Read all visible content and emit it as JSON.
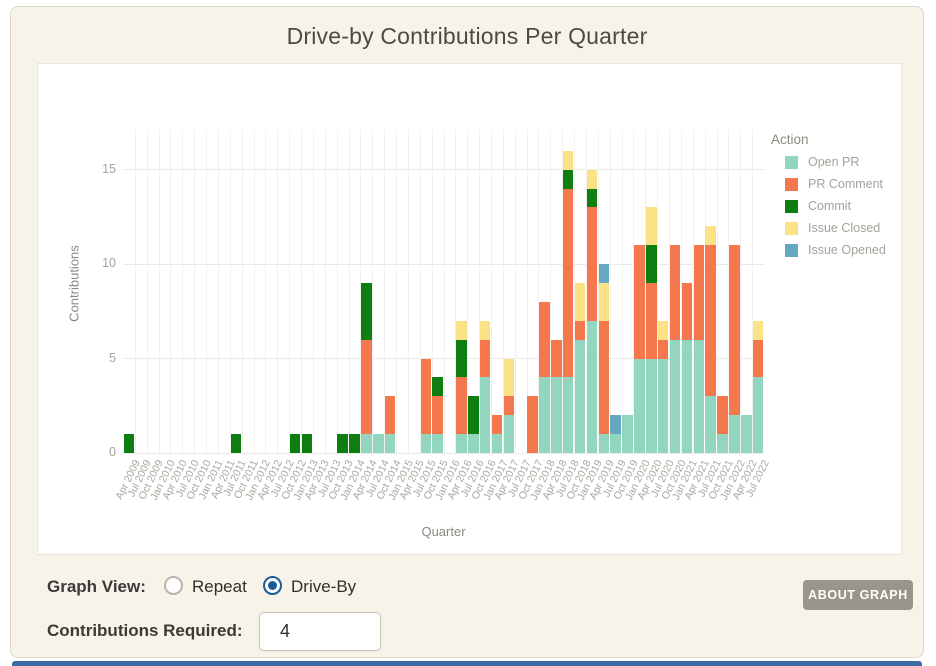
{
  "page_title": "Drive-by Contributions Per Quarter",
  "controls": {
    "graph_view_label": "Graph View:",
    "repeat_label": "Repeat",
    "driveby_label": "Drive-By",
    "selected_view": "Drive-By",
    "contributions_label": "Contributions Required:",
    "contributions_value": "4",
    "about_button_label": "ABOUT GRAPH"
  },
  "colors": {
    "accent_blue": "#1b5b99",
    "button_gray": "#9a958b",
    "card_bg": "#f8f3e9",
    "strip_blue": "#3c6ca4"
  },
  "chart_data": {
    "type": "bar",
    "stacked": true,
    "title": "Drive-by Contributions Per Quarter",
    "xlabel": "Quarter",
    "ylabel": "Contributions",
    "ylim": [
      0,
      17.1
    ],
    "yticks": [
      0,
      5,
      10,
      15
    ],
    "grid": true,
    "legend_title": "Action",
    "legend_position": "right",
    "categories": [
      "Apr 2009",
      "Jul 2009",
      "Oct 2009",
      "Jan 2010",
      "Apr 2010",
      "Jul 2010",
      "Oct 2010",
      "Jan 2011",
      "Apr 2011",
      "Jul 2011",
      "Oct 2011",
      "Jan 2012",
      "Apr 2012",
      "Jul 2012",
      "Oct 2012",
      "Jan 2013",
      "Apr 2013",
      "Jul 2013",
      "Oct 2013",
      "Jan 2014",
      "Apr 2014",
      "Jul 2014",
      "Oct 2014",
      "Jan 2015",
      "Apr 2015",
      "Jul 2015",
      "Oct 2015",
      "Jan 2016",
      "Apr 2016",
      "Jul 2016",
      "Oct 2016",
      "Jan 2017",
      "Apr 2017",
      "Jul 2017",
      "Oct 2017",
      "Jan 2018",
      "Apr 2018",
      "Jul 2018",
      "Oct 2018",
      "Jan 2019",
      "Apr 2019",
      "Jul 2019",
      "Oct 2019",
      "Jan 2020",
      "Apr 2020",
      "Jul 2020",
      "Oct 2020",
      "Jan 2021",
      "Apr 2021",
      "Jul 2021",
      "Oct 2021",
      "Jan 2022",
      "Apr 2022",
      "Jul 2022"
    ],
    "series": [
      {
        "name": "Open PR",
        "color": "#93d6bf",
        "values": [
          0,
          0,
          0,
          0,
          0,
          0,
          0,
          0,
          0,
          0,
          0,
          0,
          0,
          0,
          0,
          0,
          0,
          0,
          0,
          0,
          1,
          1,
          1,
          0,
          0,
          1,
          1,
          0,
          1,
          1,
          4,
          1,
          2,
          0,
          0,
          4,
          4,
          4,
          6,
          7,
          1,
          1,
          2,
          5,
          5,
          5,
          6,
          6,
          6,
          3,
          1,
          2,
          2,
          4
        ]
      },
      {
        "name": "PR Comment",
        "color": "#f4774e",
        "values": [
          0,
          0,
          0,
          0,
          0,
          0,
          0,
          0,
          0,
          0,
          0,
          0,
          0,
          0,
          0,
          0,
          0,
          0,
          0,
          0,
          5,
          0,
          2,
          0,
          0,
          4,
          2,
          0,
          3,
          0,
          2,
          1,
          1,
          0,
          3,
          4,
          2,
          10,
          1,
          6,
          6,
          0,
          0,
          6,
          4,
          1,
          5,
          3,
          5,
          8,
          2,
          9,
          0,
          2
        ]
      },
      {
        "name": "Commit",
        "color": "#0e7d12",
        "values": [
          1,
          0,
          0,
          0,
          0,
          0,
          0,
          0,
          0,
          1,
          0,
          0,
          0,
          0,
          1,
          1,
          0,
          0,
          1,
          1,
          3,
          0,
          0,
          0,
          0,
          0,
          1,
          0,
          2,
          2,
          0,
          0,
          0,
          0,
          0,
          0,
          0,
          1,
          0,
          1,
          0,
          0,
          0,
          0,
          2,
          0,
          0,
          0,
          0,
          0,
          0,
          0,
          0,
          0
        ]
      },
      {
        "name": "Issue Closed",
        "color": "#fce287",
        "values": [
          0,
          0,
          0,
          0,
          0,
          0,
          0,
          0,
          0,
          0,
          0,
          0,
          0,
          0,
          0,
          0,
          0,
          0,
          0,
          0,
          0,
          0,
          0,
          0,
          0,
          0,
          0,
          0,
          1,
          0,
          1,
          0,
          2,
          0,
          0,
          0,
          0,
          1,
          2,
          1,
          2,
          0,
          0,
          0,
          2,
          1,
          0,
          0,
          0,
          1,
          0,
          0,
          0,
          1
        ]
      },
      {
        "name": "Issue Opened",
        "color": "#64a8c2",
        "values": [
          0,
          0,
          0,
          0,
          0,
          0,
          0,
          0,
          0,
          0,
          0,
          0,
          0,
          0,
          0,
          0,
          0,
          0,
          0,
          0,
          0,
          0,
          0,
          0,
          0,
          0,
          0,
          0,
          0,
          0,
          0,
          0,
          0,
          0,
          0,
          0,
          0,
          0,
          0,
          0,
          1,
          1,
          0,
          0,
          0,
          0,
          0,
          0,
          0,
          0,
          0,
          0,
          0,
          0
        ]
      }
    ]
  }
}
